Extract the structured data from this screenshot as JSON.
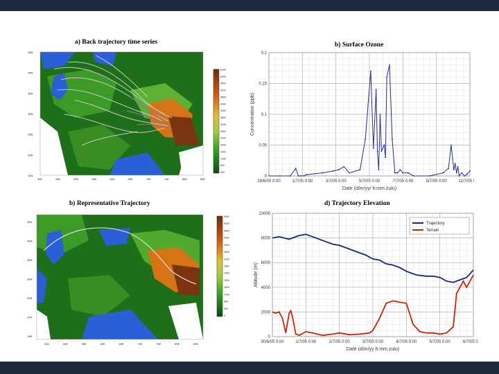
{
  "panel_a": {
    "title": "a) Back trajectory time series",
    "colorbar_ticks": [
      "6400",
      "6000",
      "5600",
      "5200",
      "4800",
      "4400",
      "4000",
      "3600",
      "3200",
      "2800",
      "2400",
      "2000",
      "1600",
      "1200",
      "800",
      "400"
    ],
    "lon_ticks": [
      "40E",
      "45E",
      "50E",
      "55E",
      "60E",
      "65E",
      "70E",
      "75E",
      "80E",
      "85E"
    ],
    "lat_ticks": [
      "45N",
      "40N",
      "35N",
      "30N",
      "25N",
      "20N",
      "15N"
    ]
  },
  "panel_b": {
    "title": "b) Representative Trajectory",
    "colorbar_ticks": [
      "5600",
      "5200",
      "4800",
      "4400",
      "4000",
      "3600",
      "3200",
      "2800",
      "2400",
      "2000",
      "1600",
      "1200",
      "800",
      "400",
      "0"
    ],
    "lon_ticks": [
      "45E",
      "50E",
      "55E",
      "60E",
      "65E",
      "70E",
      "75E",
      "80E",
      "85E"
    ],
    "lat_ticks": [
      "45N",
      "40N",
      "35N",
      "30N",
      "25N",
      "20N",
      "15N"
    ]
  },
  "chart_data": [
    {
      "type": "line",
      "title": "b) Surface Ozone",
      "xlabel": "Date (d/m/yy/ h:mm zulu)",
      "ylabel": "Concentration (ppb)",
      "ylim": [
        0,
        0.2
      ],
      "yticks": [
        "0",
        "0.05",
        "0.1",
        "0.15",
        "0.2"
      ],
      "xticks": [
        "29/6/05 0:00",
        "1/7/05 0:00",
        "3/7/05 0:00",
        "5/7/05 0:00",
        "7/7/05 0:00",
        "9/7/05 0:00",
        "11/7/05 0:00"
      ],
      "grid": true,
      "series": [
        {
          "color": "#1f2c8f",
          "x": [
            0.0,
            0.4,
            0.8,
            1.0,
            1.1,
            1.2,
            1.3,
            1.4,
            2.0,
            2.4,
            2.6,
            2.8,
            3.0,
            3.4,
            3.6,
            3.8,
            3.9,
            4.0,
            4.05,
            4.1,
            4.15,
            4.2,
            4.3,
            4.35,
            4.4,
            4.5,
            4.6,
            4.7,
            4.8,
            4.9,
            5.0,
            5.2,
            5.4,
            6.0,
            6.5,
            6.7,
            6.8,
            6.9,
            6.95,
            7.0,
            7.05,
            7.1,
            7.2,
            7.3,
            7.4,
            7.5
          ],
          "values": [
            0,
            0,
            0,
            0.012,
            0,
            0,
            0,
            0.002,
            0.005,
            0.008,
            0.01,
            0.015,
            0.005,
            0.01,
            0.06,
            0.17,
            0.045,
            0.14,
            0.04,
            0.01,
            0.1,
            0.04,
            0.05,
            0.03,
            0.16,
            0.18,
            0.06,
            0.005,
            0.005,
            0.01,
            0.005,
            0.005,
            0,
            0,
            0.005,
            0.012,
            0.05,
            0.01,
            0.02,
            0.005,
            0.015,
            0,
            0.005,
            0,
            0.003,
            0.008
          ]
        }
      ]
    },
    {
      "type": "line",
      "title": "d) Trajectory Elevation",
      "xlabel": "Date (d/m/yy h:mm zulu)",
      "ylabel": "Altitude (m)",
      "ylim": [
        0,
        10000
      ],
      "yticks": [
        "0",
        "2000",
        "4000",
        "6000",
        "8000",
        "10000"
      ],
      "xticks": [
        "30/6/05 0:00",
        "1/7/05 0:00",
        "2/7/05 0:00",
        "3/7/05 0:00",
        "4/7/05 0:00",
        "5/7/05 0:00",
        "6/7/05 0:00"
      ],
      "legend": "top-right",
      "grid": true,
      "series": [
        {
          "name": "Trajectory",
          "color": "#1a237e",
          "x": [
            0.0,
            0.2,
            0.5,
            0.8,
            1.0,
            1.2,
            1.5,
            1.8,
            2.0,
            2.3,
            2.6,
            2.8,
            3.0,
            3.2,
            3.4,
            3.6,
            3.8,
            4.0,
            4.3,
            4.6,
            4.8,
            5.0,
            5.2,
            5.4,
            5.6,
            5.8,
            6.0
          ],
          "values": [
            8000,
            8100,
            7900,
            8200,
            8300,
            8100,
            7800,
            7500,
            7400,
            7100,
            6800,
            6600,
            6300,
            6200,
            5900,
            5800,
            5600,
            5300,
            5000,
            4900,
            4900,
            4800,
            4500,
            4400,
            4600,
            4800,
            5400
          ]
        },
        {
          "name": "Terrain",
          "color": "#cc2200",
          "x": [
            0.0,
            0.1,
            0.2,
            0.3,
            0.4,
            0.5,
            0.55,
            0.6,
            0.7,
            0.8,
            1.0,
            1.2,
            1.5,
            1.8,
            2.0,
            2.3,
            2.6,
            2.9,
            3.0,
            3.2,
            3.4,
            3.6,
            3.8,
            4.0,
            4.2,
            4.4,
            4.6,
            4.8,
            5.0,
            5.2,
            5.4,
            5.5,
            5.7,
            5.8,
            6.0
          ],
          "values": [
            2000,
            1900,
            2000,
            1500,
            300,
            1900,
            2100,
            1600,
            200,
            100,
            400,
            300,
            100,
            200,
            300,
            150,
            200,
            300,
            500,
            1500,
            2700,
            2900,
            2800,
            2700,
            1000,
            400,
            300,
            300,
            200,
            300,
            800,
            3500,
            4500,
            4000,
            5000
          ]
        }
      ]
    }
  ]
}
